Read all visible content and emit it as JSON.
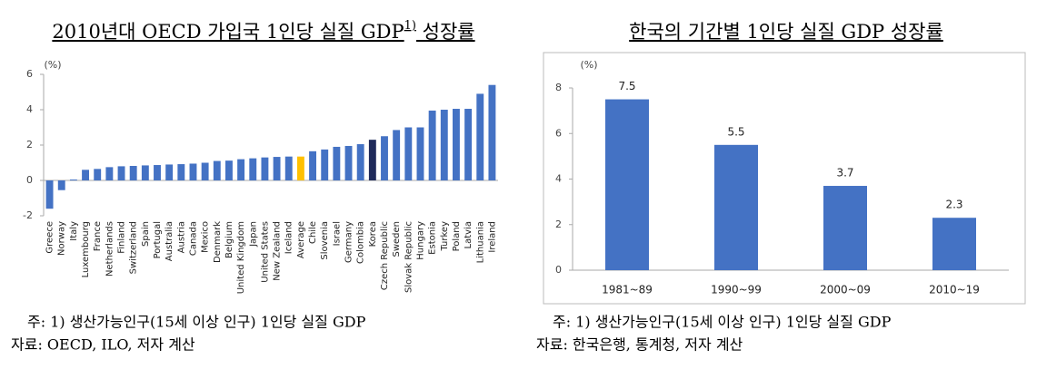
{
  "chart_data": [
    {
      "type": "bar",
      "title_parts": [
        "2010년대 OECD 가입국 1인당 실질 GDP",
        "1)",
        " 성장률"
      ],
      "unit": "(%)",
      "categories": [
        "Greece",
        "Norway",
        "Italy",
        "Luxembourg",
        "France",
        "Netherlands",
        "Finland",
        "Switzerland",
        "Spain",
        "Portugal",
        "Australia",
        "Austria",
        "Canada",
        "Mexico",
        "Denmark",
        "Belgium",
        "United Kingdom",
        "Japan",
        "United States",
        "New Zealand",
        "Iceland",
        "Average",
        "Chile",
        "Slovenia",
        "Israel",
        "Germany",
        "Colombia",
        "Korea",
        "Czech Republic",
        "Sweden",
        "Slovak Republic",
        "Hungary",
        "Estonia",
        "Turkey",
        "Poland",
        "Latvia",
        "Lithuania",
        "Ireland"
      ],
      "values": [
        -1.6,
        -0.55,
        0.05,
        0.6,
        0.65,
        0.75,
        0.8,
        0.82,
        0.85,
        0.87,
        0.9,
        0.92,
        0.95,
        1.0,
        1.1,
        1.12,
        1.2,
        1.25,
        1.3,
        1.33,
        1.35,
        1.35,
        1.65,
        1.75,
        1.9,
        1.95,
        2.05,
        2.3,
        2.5,
        2.85,
        3.0,
        3.0,
        3.95,
        4.0,
        4.05,
        4.05,
        4.9,
        5.4
      ],
      "colors": [
        "#4472c4",
        "#4472c4",
        "#4472c4",
        "#4472c4",
        "#4472c4",
        "#4472c4",
        "#4472c4",
        "#4472c4",
        "#4472c4",
        "#4472c4",
        "#4472c4",
        "#4472c4",
        "#4472c4",
        "#4472c4",
        "#4472c4",
        "#4472c4",
        "#4472c4",
        "#4472c4",
        "#4472c4",
        "#4472c4",
        "#4472c4",
        "#ffc000",
        "#4472c4",
        "#4472c4",
        "#4472c4",
        "#4472c4",
        "#4472c4",
        "#1f2a5a",
        "#4472c4",
        "#4472c4",
        "#4472c4",
        "#4472c4",
        "#4472c4",
        "#4472c4",
        "#4472c4",
        "#4472c4",
        "#4472c4",
        "#4472c4"
      ],
      "ylim": [
        -2,
        6
      ],
      "yticks": [
        -2,
        0,
        2,
        4,
        6
      ],
      "grid": false,
      "notes": [
        "주: 1) 생산가능인구(15세 이상 인구) 1인당 실질 GDP",
        "자료: OECD, ILO, 저자 계산"
      ]
    },
    {
      "type": "bar",
      "title_parts": [
        "한국의 기간별 1인당 실질 GDP 성장률"
      ],
      "unit": "(%)",
      "categories": [
        "1981~89",
        "1990~99",
        "2000~09",
        "2010~19"
      ],
      "values": [
        7.5,
        5.5,
        3.7,
        2.3
      ],
      "color": "#4472c4",
      "ylim": [
        0,
        8
      ],
      "yticks": [
        0,
        2,
        4,
        6,
        8
      ],
      "grid": false,
      "notes": [
        "주: 1) 생산가능인구(15세 이상 인구) 1인당 실질 GDP",
        "자료: 한국은행, 통계청, 저자 계산"
      ]
    }
  ]
}
